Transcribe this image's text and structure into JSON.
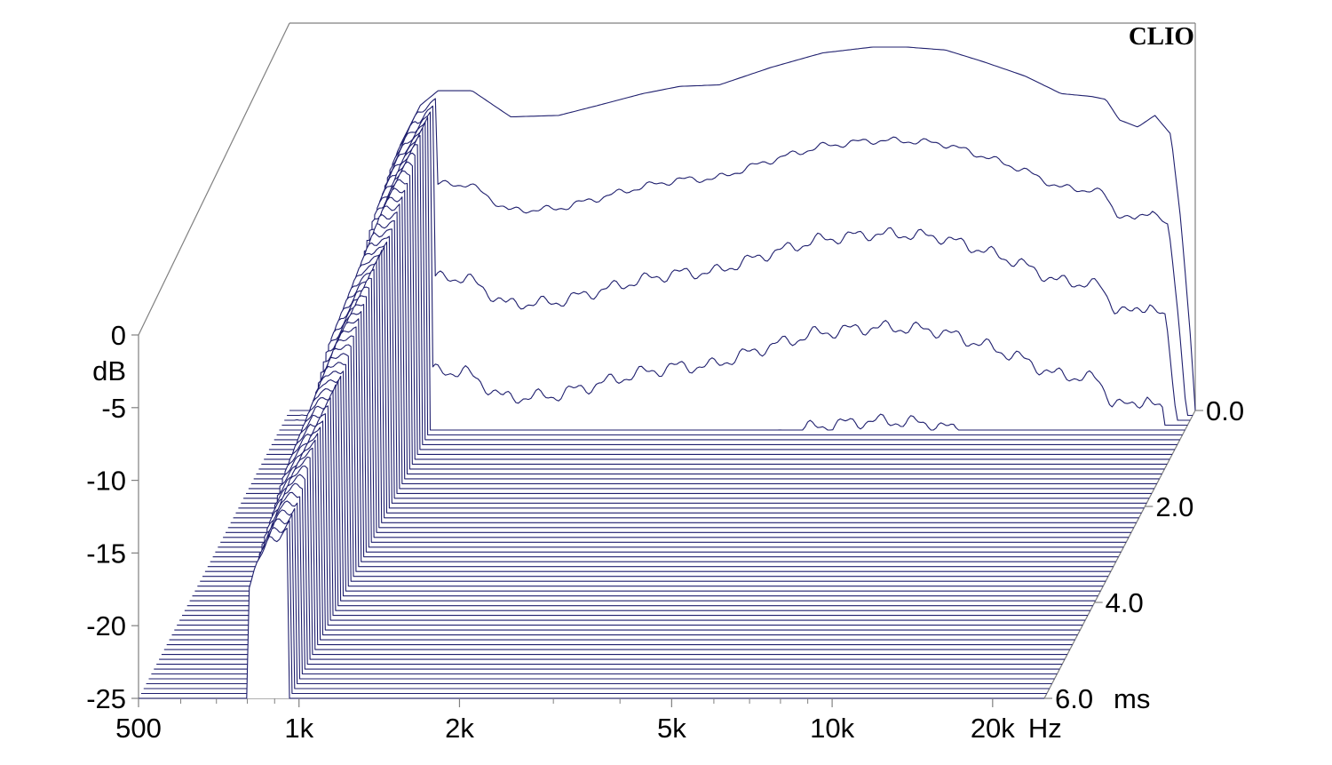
{
  "brand": "CLIO",
  "chart_data": {
    "type": "waterfall",
    "title": "",
    "line_color": "#1f1f6e",
    "x_axis": {
      "label": "Hz",
      "scale": "log",
      "range": [
        500,
        25000
      ],
      "tick_labels": [
        {
          "value": 500,
          "text": "500"
        },
        {
          "value": 1000,
          "text": "1k"
        },
        {
          "value": 2000,
          "text": "2k"
        },
        {
          "value": 5000,
          "text": "5k"
        },
        {
          "value": 10000,
          "text": "10k"
        },
        {
          "value": 20000,
          "text": "20k"
        }
      ],
      "minor_ticks": [
        600,
        700,
        800,
        900,
        3000,
        4000,
        6000,
        7000,
        8000,
        9000
      ]
    },
    "y_axis": {
      "label": "dB",
      "range": [
        -25,
        0
      ],
      "tick_labels": [
        {
          "value": 0,
          "text": "0"
        },
        {
          "value": -5,
          "text": "-5"
        },
        {
          "value": -10,
          "text": "-10"
        },
        {
          "value": -15,
          "text": "-15"
        },
        {
          "value": -20,
          "text": "-20"
        },
        {
          "value": -25,
          "text": "-25"
        }
      ]
    },
    "z_axis": {
      "label": "ms",
      "range": [
        0,
        6
      ],
      "tick_labels": [
        {
          "value": 0,
          "text": "0.0"
        },
        {
          "value": 2,
          "text": "2.0"
        },
        {
          "value": 4,
          "text": "4.0"
        },
        {
          "value": 6,
          "text": "6.0"
        }
      ]
    },
    "floor_db": -25,
    "slice_count": 60,
    "initial_response": {
      "freq_hz": [
        800,
        880,
        950,
        1100,
        1300,
        1600,
        1900,
        2300,
        2700,
        3200,
        4000,
        5000,
        6200,
        7200,
        8500,
        10000,
        12000,
        14000,
        16000,
        17000,
        18000,
        19500,
        21000,
        22500,
        23500,
        24500,
        25000
      ],
      "level_db": [
        -7.0,
        -4.0,
        -3.0,
        -3.0,
        -4.8,
        -4.7,
        -4.0,
        -3.2,
        -2.7,
        -2.6,
        -1.4,
        -0.4,
        0.0,
        0.0,
        -0.2,
        -1.0,
        -2.0,
        -3.2,
        -3.4,
        -3.6,
        -5.0,
        -5.5,
        -4.7,
        -6.0,
        -12.0,
        -20.0,
        -25.0
      ]
    },
    "decay": [
      {
        "freq_range_hz": [
          500,
          950
        ],
        "db_per_ms": 1.7,
        "note": "slow decaying resonance ridge near 1k"
      },
      {
        "freq_range_hz": [
          950,
          23500
        ],
        "db_per_ms": 60,
        "note": "fast decay; response falls to floor within ~0.4 ms"
      },
      {
        "freq_range_hz": [
          23500,
          25000
        ],
        "db_per_ms": 60
      }
    ]
  }
}
